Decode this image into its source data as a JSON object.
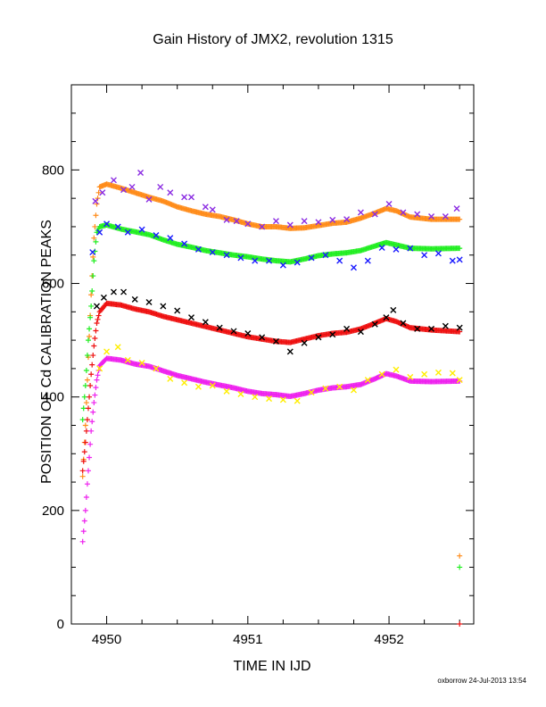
{
  "footer": "oxborrow 24-Jul-2013 13:54",
  "chart_data": {
    "type": "scatter",
    "title": "Gain History of JMX2, revolution 1315",
    "xlabel": "TIME IN IJD",
    "ylabel": "POSITION OF Cd CALIBRATION PEAKS",
    "xlim": [
      4949.75,
      4952.6
    ],
    "ylim": [
      0,
      950
    ],
    "xticks": [
      4950,
      4951,
      4952
    ],
    "yticks": [
      0,
      200,
      400,
      600,
      800
    ],
    "grid": false,
    "legend": "none",
    "series": [
      {
        "color": "#ff8c1a",
        "marker": "+",
        "points": [
          [
            4949.83,
            260
          ],
          [
            4949.85,
            350
          ],
          [
            4949.87,
            470
          ],
          [
            4949.89,
            580
          ],
          [
            4949.91,
            680
          ],
          [
            4949.93,
            740
          ],
          [
            4949.95,
            770
          ],
          [
            4950.0,
            775
          ],
          [
            4950.1,
            768
          ],
          [
            4950.2,
            760
          ],
          [
            4950.3,
            752
          ],
          [
            4950.4,
            745
          ],
          [
            4950.5,
            735
          ],
          [
            4950.6,
            728
          ],
          [
            4950.7,
            722
          ],
          [
            4950.8,
            718
          ],
          [
            4950.9,
            712
          ],
          [
            4951.0,
            705
          ],
          [
            4951.1,
            700
          ],
          [
            4951.2,
            700
          ],
          [
            4951.3,
            697
          ],
          [
            4951.4,
            698
          ],
          [
            4951.5,
            702
          ],
          [
            4951.6,
            706
          ],
          [
            4951.7,
            708
          ],
          [
            4951.8,
            715
          ],
          [
            4951.9,
            724
          ],
          [
            4951.98,
            732
          ],
          [
            4952.05,
            728
          ],
          [
            4952.15,
            717
          ],
          [
            4952.3,
            713
          ],
          [
            4952.5,
            713
          ],
          [
            4952.5,
            120
          ]
        ]
      },
      {
        "color": "#22ee22",
        "marker": "+",
        "points": [
          [
            4949.83,
            360
          ],
          [
            4949.85,
            420
          ],
          [
            4949.87,
            500
          ],
          [
            4949.89,
            560
          ],
          [
            4949.91,
            640
          ],
          [
            4949.93,
            690
          ],
          [
            4949.95,
            700
          ],
          [
            4950.0,
            703
          ],
          [
            4950.1,
            696
          ],
          [
            4950.2,
            691
          ],
          [
            4950.3,
            686
          ],
          [
            4950.4,
            677
          ],
          [
            4950.5,
            669
          ],
          [
            4950.6,
            664
          ],
          [
            4950.7,
            658
          ],
          [
            4950.8,
            654
          ],
          [
            4950.9,
            650
          ],
          [
            4951.0,
            647
          ],
          [
            4951.1,
            643
          ],
          [
            4951.2,
            640
          ],
          [
            4951.3,
            638
          ],
          [
            4951.4,
            643
          ],
          [
            4951.5,
            649
          ],
          [
            4951.6,
            652
          ],
          [
            4951.7,
            654
          ],
          [
            4951.8,
            658
          ],
          [
            4951.9,
            666
          ],
          [
            4951.98,
            672
          ],
          [
            4952.05,
            668
          ],
          [
            4952.15,
            662
          ],
          [
            4952.3,
            661
          ],
          [
            4952.5,
            662
          ],
          [
            4952.5,
            100
          ]
        ]
      },
      {
        "color": "#ee1111",
        "marker": "+",
        "points": [
          [
            4949.83,
            270
          ],
          [
            4949.85,
            320
          ],
          [
            4949.87,
            380
          ],
          [
            4949.89,
            440
          ],
          [
            4949.91,
            490
          ],
          [
            4949.93,
            530
          ],
          [
            4949.95,
            550
          ],
          [
            4950.0,
            565
          ],
          [
            4950.1,
            562
          ],
          [
            4950.2,
            555
          ],
          [
            4950.3,
            550
          ],
          [
            4950.4,
            542
          ],
          [
            4950.5,
            536
          ],
          [
            4950.6,
            530
          ],
          [
            4950.7,
            524
          ],
          [
            4950.8,
            518
          ],
          [
            4950.9,
            512
          ],
          [
            4951.0,
            506
          ],
          [
            4951.1,
            502
          ],
          [
            4951.2,
            498
          ],
          [
            4951.3,
            496
          ],
          [
            4951.4,
            502
          ],
          [
            4951.5,
            508
          ],
          [
            4951.6,
            512
          ],
          [
            4951.7,
            514
          ],
          [
            4951.8,
            520
          ],
          [
            4951.9,
            530
          ],
          [
            4951.98,
            538
          ],
          [
            4952.05,
            533
          ],
          [
            4952.15,
            522
          ],
          [
            4952.3,
            518
          ],
          [
            4952.5,
            515
          ],
          [
            4952.5,
            0
          ]
        ]
      },
      {
        "color": "#ee22ee",
        "marker": "+",
        "points": [
          [
            4949.83,
            145
          ],
          [
            4949.85,
            200
          ],
          [
            4949.87,
            270
          ],
          [
            4949.89,
            340
          ],
          [
            4949.91,
            390
          ],
          [
            4949.93,
            430
          ],
          [
            4949.95,
            455
          ],
          [
            4950.0,
            468
          ],
          [
            4950.1,
            465
          ],
          [
            4950.2,
            458
          ],
          [
            4950.3,
            454
          ],
          [
            4950.4,
            446
          ],
          [
            4950.5,
            438
          ],
          [
            4950.6,
            432
          ],
          [
            4950.7,
            426
          ],
          [
            4950.8,
            421
          ],
          [
            4950.9,
            416
          ],
          [
            4951.0,
            410
          ],
          [
            4951.1,
            406
          ],
          [
            4951.2,
            404
          ],
          [
            4951.3,
            401
          ],
          [
            4951.4,
            406
          ],
          [
            4951.5,
            412
          ],
          [
            4951.6,
            416
          ],
          [
            4951.7,
            418
          ],
          [
            4951.8,
            422
          ],
          [
            4951.9,
            432
          ],
          [
            4951.98,
            441
          ],
          [
            4952.05,
            437
          ],
          [
            4952.15,
            428
          ],
          [
            4952.3,
            427
          ],
          [
            4952.5,
            428
          ]
        ]
      },
      {
        "color": "#8a2be2",
        "marker": "x",
        "points": [
          [
            4949.92,
            745
          ],
          [
            4949.97,
            760
          ],
          [
            4950.05,
            782
          ],
          [
            4950.12,
            765
          ],
          [
            4950.18,
            770
          ],
          [
            4950.24,
            795
          ],
          [
            4950.3,
            748
          ],
          [
            4950.38,
            770
          ],
          [
            4950.45,
            760
          ],
          [
            4950.55,
            752
          ],
          [
            4950.6,
            752
          ],
          [
            4950.7,
            735
          ],
          [
            4950.75,
            730
          ],
          [
            4950.85,
            712
          ],
          [
            4950.92,
            710
          ],
          [
            4951.0,
            705
          ],
          [
            4951.1,
            700
          ],
          [
            4951.2,
            710
          ],
          [
            4951.3,
            703
          ],
          [
            4951.4,
            710
          ],
          [
            4951.5,
            708
          ],
          [
            4951.6,
            712
          ],
          [
            4951.7,
            713
          ],
          [
            4951.8,
            725
          ],
          [
            4951.9,
            722
          ],
          [
            4952.0,
            740
          ],
          [
            4952.1,
            725
          ],
          [
            4952.2,
            722
          ],
          [
            4952.3,
            718
          ],
          [
            4952.4,
            718
          ],
          [
            4952.48,
            732
          ]
        ]
      },
      {
        "color": "#1a1aff",
        "marker": "x",
        "points": [
          [
            4949.9,
            655
          ],
          [
            4949.95,
            690
          ],
          [
            4950.0,
            705
          ],
          [
            4950.08,
            700
          ],
          [
            4950.15,
            690
          ],
          [
            4950.25,
            695
          ],
          [
            4950.35,
            685
          ],
          [
            4950.45,
            680
          ],
          [
            4950.55,
            670
          ],
          [
            4950.65,
            660
          ],
          [
            4950.75,
            655
          ],
          [
            4950.85,
            650
          ],
          [
            4950.95,
            645
          ],
          [
            4951.05,
            640
          ],
          [
            4951.15,
            640
          ],
          [
            4951.25,
            632
          ],
          [
            4951.35,
            637
          ],
          [
            4951.45,
            645
          ],
          [
            4951.55,
            650
          ],
          [
            4951.65,
            640
          ],
          [
            4951.75,
            628
          ],
          [
            4951.85,
            640
          ],
          [
            4951.95,
            663
          ],
          [
            4952.05,
            660
          ],
          [
            4952.15,
            662
          ],
          [
            4952.25,
            650
          ],
          [
            4952.35,
            653
          ],
          [
            4952.45,
            640
          ],
          [
            4952.5,
            642
          ]
        ]
      },
      {
        "color": "#000000",
        "marker": "x",
        "points": [
          [
            4949.93,
            560
          ],
          [
            4949.98,
            575
          ],
          [
            4950.05,
            585
          ],
          [
            4950.12,
            585
          ],
          [
            4950.2,
            572
          ],
          [
            4950.3,
            567
          ],
          [
            4950.4,
            560
          ],
          [
            4950.5,
            552
          ],
          [
            4950.6,
            540
          ],
          [
            4950.7,
            532
          ],
          [
            4950.8,
            522
          ],
          [
            4950.9,
            516
          ],
          [
            4951.0,
            512
          ],
          [
            4951.1,
            505
          ],
          [
            4951.2,
            498
          ],
          [
            4951.3,
            480
          ],
          [
            4951.4,
            495
          ],
          [
            4951.5,
            505
          ],
          [
            4951.6,
            510
          ],
          [
            4951.7,
            520
          ],
          [
            4951.8,
            515
          ],
          [
            4951.9,
            528
          ],
          [
            4951.98,
            540
          ],
          [
            4952.03,
            553
          ],
          [
            4952.1,
            530
          ],
          [
            4952.2,
            520
          ],
          [
            4952.3,
            520
          ],
          [
            4952.4,
            525
          ],
          [
            4952.5,
            522
          ]
        ]
      },
      {
        "color": "#ffee00",
        "marker": "x",
        "points": [
          [
            4949.95,
            450
          ],
          [
            4950.0,
            480
          ],
          [
            4950.08,
            488
          ],
          [
            4950.15,
            465
          ],
          [
            4950.25,
            460
          ],
          [
            4950.35,
            450
          ],
          [
            4950.45,
            432
          ],
          [
            4950.55,
            425
          ],
          [
            4950.65,
            418
          ],
          [
            4950.75,
            420
          ],
          [
            4950.85,
            410
          ],
          [
            4950.95,
            405
          ],
          [
            4951.05,
            400
          ],
          [
            4951.15,
            397
          ],
          [
            4951.25,
            395
          ],
          [
            4951.35,
            393
          ],
          [
            4951.45,
            408
          ],
          [
            4951.55,
            415
          ],
          [
            4951.65,
            418
          ],
          [
            4951.75,
            412
          ],
          [
            4951.85,
            430
          ],
          [
            4951.95,
            440
          ],
          [
            4952.05,
            448
          ],
          [
            4952.15,
            435
          ],
          [
            4952.25,
            440
          ],
          [
            4952.35,
            443
          ],
          [
            4952.45,
            442
          ],
          [
            4952.5,
            430
          ]
        ]
      }
    ]
  }
}
